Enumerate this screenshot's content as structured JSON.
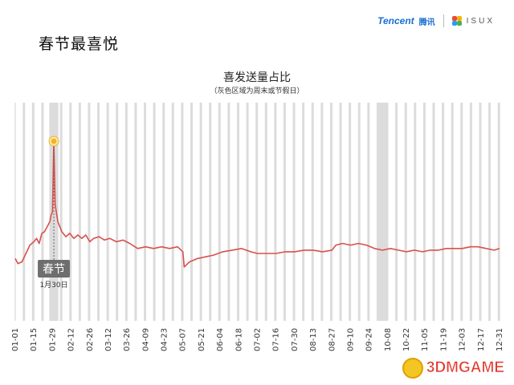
{
  "page": {
    "title": "春节最喜悦"
  },
  "logo": {
    "tencent": "Tencent",
    "tengxun": "腾讯",
    "isux": "ISUX"
  },
  "watermark": {
    "text": "3DMGAME"
  },
  "colors": {
    "line": "#d9504c",
    "band": "#dcdcdc",
    "peak": "#f0b429",
    "label_bg": "#6e6e6e"
  },
  "chart_data": {
    "type": "line",
    "title": "喜发送量占比",
    "subtitle": "（灰色区域为周末或节假日）",
    "xlabel": "",
    "ylabel": "",
    "x_start": "01-01",
    "x_end": "12-31",
    "days": 365,
    "xticks": [
      "01-01",
      "01-15",
      "01-29",
      "02-12",
      "02-26",
      "03-12",
      "03-26",
      "04-09",
      "04-23",
      "05-07",
      "05-21",
      "06-04",
      "06-18",
      "07-02",
      "07-16",
      "07-30",
      "08-13",
      "08-27",
      "09-10",
      "09-24",
      "10-08",
      "10-22",
      "11-05",
      "11-19",
      "12-03",
      "12-17",
      "12-31"
    ],
    "grid": false,
    "legend": "none",
    "annotation": {
      "x": "01-30",
      "label": "春节",
      "date": "1月30日"
    },
    "ylim": [
      0,
      100
    ],
    "points": [
      {
        "x": "01-01",
        "y": 30
      },
      {
        "x": "01-03",
        "y": 27
      },
      {
        "x": "01-06",
        "y": 28
      },
      {
        "x": "01-09",
        "y": 33
      },
      {
        "x": "01-12",
        "y": 38
      },
      {
        "x": "01-15",
        "y": 40
      },
      {
        "x": "01-17",
        "y": 42
      },
      {
        "x": "01-19",
        "y": 39
      },
      {
        "x": "01-21",
        "y": 45
      },
      {
        "x": "01-23",
        "y": 46
      },
      {
        "x": "01-25",
        "y": 49
      },
      {
        "x": "01-27",
        "y": 52
      },
      {
        "x": "01-28",
        "y": 56
      },
      {
        "x": "01-29",
        "y": 58
      },
      {
        "x": "01-30",
        "y": 100
      },
      {
        "x": "01-31",
        "y": 62
      },
      {
        "x": "02-02",
        "y": 52
      },
      {
        "x": "02-05",
        "y": 46
      },
      {
        "x": "02-08",
        "y": 43
      },
      {
        "x": "02-11",
        "y": 45
      },
      {
        "x": "02-14",
        "y": 42
      },
      {
        "x": "02-17",
        "y": 44
      },
      {
        "x": "02-20",
        "y": 42
      },
      {
        "x": "02-23",
        "y": 44
      },
      {
        "x": "02-26",
        "y": 40
      },
      {
        "x": "03-01",
        "y": 42
      },
      {
        "x": "03-05",
        "y": 43
      },
      {
        "x": "03-09",
        "y": 41
      },
      {
        "x": "03-13",
        "y": 42
      },
      {
        "x": "03-18",
        "y": 40
      },
      {
        "x": "03-23",
        "y": 41
      },
      {
        "x": "03-28",
        "y": 39
      },
      {
        "x": "04-03",
        "y": 36
      },
      {
        "x": "04-09",
        "y": 37
      },
      {
        "x": "04-15",
        "y": 36
      },
      {
        "x": "04-21",
        "y": 37
      },
      {
        "x": "04-27",
        "y": 36
      },
      {
        "x": "05-03",
        "y": 37
      },
      {
        "x": "05-07",
        "y": 34
      },
      {
        "x": "05-08",
        "y": 25
      },
      {
        "x": "05-12",
        "y": 28
      },
      {
        "x": "05-18",
        "y": 30
      },
      {
        "x": "05-24",
        "y": 31
      },
      {
        "x": "05-30",
        "y": 32
      },
      {
        "x": "06-06",
        "y": 34
      },
      {
        "x": "06-13",
        "y": 35
      },
      {
        "x": "06-20",
        "y": 36
      },
      {
        "x": "06-27",
        "y": 34
      },
      {
        "x": "07-02",
        "y": 33
      },
      {
        "x": "07-09",
        "y": 33
      },
      {
        "x": "07-16",
        "y": 33
      },
      {
        "x": "07-23",
        "y": 34
      },
      {
        "x": "07-30",
        "y": 34
      },
      {
        "x": "08-06",
        "y": 35
      },
      {
        "x": "08-13",
        "y": 35
      },
      {
        "x": "08-20",
        "y": 34
      },
      {
        "x": "08-27",
        "y": 35
      },
      {
        "x": "08-30",
        "y": 38
      },
      {
        "x": "09-04",
        "y": 39
      },
      {
        "x": "09-10",
        "y": 38
      },
      {
        "x": "09-16",
        "y": 39
      },
      {
        "x": "09-22",
        "y": 38
      },
      {
        "x": "09-28",
        "y": 36
      },
      {
        "x": "10-04",
        "y": 35
      },
      {
        "x": "10-10",
        "y": 36
      },
      {
        "x": "10-16",
        "y": 35
      },
      {
        "x": "10-22",
        "y": 34
      },
      {
        "x": "10-28",
        "y": 35
      },
      {
        "x": "11-03",
        "y": 34
      },
      {
        "x": "11-09",
        "y": 35
      },
      {
        "x": "11-15",
        "y": 35
      },
      {
        "x": "11-21",
        "y": 36
      },
      {
        "x": "11-27",
        "y": 36
      },
      {
        "x": "12-03",
        "y": 36
      },
      {
        "x": "12-09",
        "y": 37
      },
      {
        "x": "12-15",
        "y": 37
      },
      {
        "x": "12-21",
        "y": 36
      },
      {
        "x": "12-27",
        "y": 35
      },
      {
        "x": "12-31",
        "y": 36
      }
    ]
  }
}
